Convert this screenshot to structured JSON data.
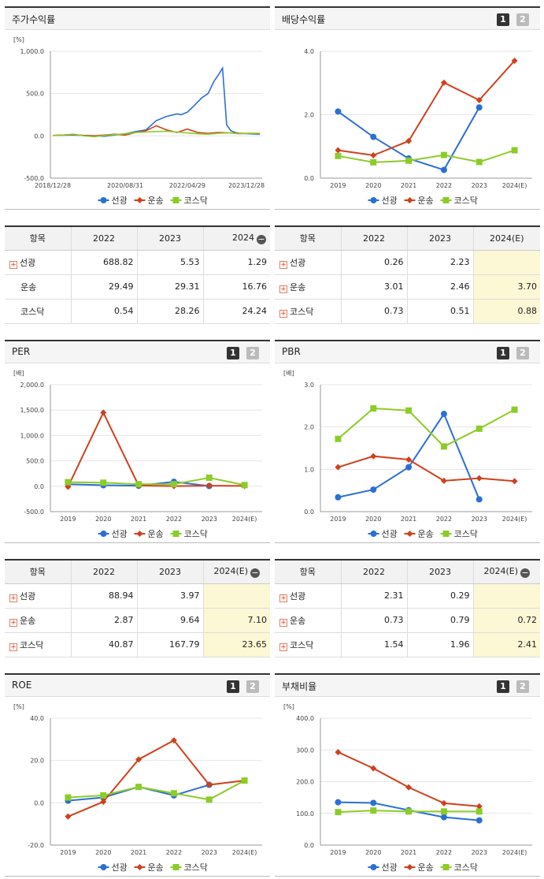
{
  "legend_names": [
    "선광",
    "운송",
    "코스닥"
  ],
  "colors": {
    "s1": "#2a6fd6",
    "s2": "#d0401c",
    "s3": "#8ccc28"
  },
  "toggle": {
    "one": "1",
    "two": "2"
  },
  "panels": {
    "stock": {
      "title": "주가수익률"
    },
    "div": {
      "title": "배당수익률"
    },
    "per": {
      "title": "PER"
    },
    "pbr": {
      "title": "PBR"
    },
    "roe": {
      "title": "ROE"
    },
    "debt": {
      "title": "부채비율"
    }
  },
  "tables": {
    "stock": {
      "headers": [
        "항목",
        "2022",
        "2023",
        "2024"
      ],
      "rows": [
        {
          "label": "선광",
          "values": [
            "688.82",
            "5.53",
            "1.29"
          ]
        },
        {
          "label": "운송",
          "values": [
            "29.49",
            "29.31",
            "16.76"
          ]
        },
        {
          "label": "코스닥",
          "values": [
            "0.54",
            "28.26",
            "24.24"
          ]
        }
      ]
    },
    "div": {
      "headers": [
        "항목",
        "2022",
        "2023",
        "2024(E)"
      ],
      "rows": [
        {
          "label": "선광",
          "values": [
            "0.26",
            "2.23",
            ""
          ]
        },
        {
          "label": "운송",
          "values": [
            "3.01",
            "2.46",
            "3.70"
          ]
        },
        {
          "label": "코스닥",
          "values": [
            "0.73",
            "0.51",
            "0.88"
          ]
        }
      ]
    },
    "per": {
      "headers": [
        "항목",
        "2022",
        "2023",
        "2024(E)"
      ],
      "rows": [
        {
          "label": "선광",
          "values": [
            "88.94",
            "3.97",
            ""
          ]
        },
        {
          "label": "운송",
          "values": [
            "2.87",
            "9.64",
            "7.10"
          ]
        },
        {
          "label": "코스닥",
          "values": [
            "40.87",
            "167.79",
            "23.65"
          ]
        }
      ]
    },
    "pbr": {
      "headers": [
        "항목",
        "2022",
        "2023",
        "2024(E)"
      ],
      "rows": [
        {
          "label": "선광",
          "values": [
            "2.31",
            "0.29",
            ""
          ]
        },
        {
          "label": "운송",
          "values": [
            "0.73",
            "0.79",
            "0.72"
          ]
        },
        {
          "label": "코스닥",
          "values": [
            "1.54",
            "1.96",
            "2.41"
          ]
        }
      ]
    }
  },
  "chart_data": [
    {
      "id": "stock",
      "type": "line",
      "title": "주가수익률",
      "unit": "[%]",
      "ylim": [
        -500,
        1000
      ],
      "yticks": [
        "-500.0",
        "0.0",
        "500.0",
        "1,000.0"
      ],
      "xtick_labels": [
        "2018/12/28",
        "2020/08/31",
        "2022/04/29",
        "2023/12/28"
      ],
      "xtick_pos": [
        0,
        0.35,
        0.65,
        1.0
      ],
      "series": [
        {
          "name": "선광",
          "x": [
            0,
            0.05,
            0.1,
            0.15,
            0.2,
            0.25,
            0.3,
            0.35,
            0.4,
            0.45,
            0.5,
            0.55,
            0.6,
            0.62,
            0.65,
            0.68,
            0.72,
            0.75,
            0.78,
            0.8,
            0.82,
            0.84,
            0.86,
            0.88,
            0.9,
            0.95,
            1.0
          ],
          "values": [
            5,
            8,
            10,
            5,
            2,
            -5,
            10,
            25,
            50,
            70,
            180,
            230,
            260,
            250,
            280,
            350,
            450,
            500,
            650,
            720,
            800,
            130,
            60,
            40,
            30,
            25,
            20
          ]
        },
        {
          "name": "운송",
          "x": [
            0,
            0.05,
            0.1,
            0.15,
            0.2,
            0.25,
            0.3,
            0.35,
            0.4,
            0.45,
            0.5,
            0.55,
            0.6,
            0.65,
            0.7,
            0.75,
            0.8,
            0.85,
            0.9,
            0.95,
            1.0
          ],
          "values": [
            5,
            10,
            15,
            5,
            0,
            10,
            20,
            10,
            40,
            60,
            120,
            70,
            40,
            80,
            40,
            30,
            40,
            35,
            30,
            30,
            30
          ]
        },
        {
          "name": "코스닥",
          "x": [
            0,
            0.05,
            0.1,
            0.15,
            0.2,
            0.25,
            0.3,
            0.35,
            0.4,
            0.45,
            0.5,
            0.55,
            0.6,
            0.65,
            0.7,
            0.75,
            0.8,
            0.85,
            0.9,
            0.95,
            1.0
          ],
          "values": [
            5,
            10,
            20,
            0,
            -10,
            5,
            15,
            25,
            40,
            45,
            50,
            55,
            45,
            35,
            25,
            20,
            30,
            35,
            25,
            30,
            30
          ]
        }
      ]
    },
    {
      "id": "div",
      "type": "line",
      "title": "배당수익률",
      "categories": [
        "2019",
        "2020",
        "2021",
        "2022",
        "2023",
        "2024(E)"
      ],
      "ylim": [
        0,
        4
      ],
      "yticks": [
        "0.0",
        "2.0",
        "4.0"
      ],
      "series": [
        {
          "name": "선광",
          "values": [
            2.1,
            1.3,
            0.62,
            0.26,
            2.23,
            null
          ]
        },
        {
          "name": "운송",
          "values": [
            0.88,
            0.72,
            1.17,
            3.01,
            2.46,
            3.7
          ]
        },
        {
          "name": "코스닥",
          "values": [
            0.7,
            0.5,
            0.55,
            0.73,
            0.51,
            0.88
          ]
        }
      ]
    },
    {
      "id": "per",
      "type": "line",
      "title": "PER",
      "unit": "[배]",
      "categories": [
        "2019",
        "2020",
        "2021",
        "2022",
        "2023",
        "2024(E)"
      ],
      "ylim": [
        -500,
        2000
      ],
      "yticks": [
        "-500.0",
        "0.0",
        "500.0",
        "1,000.0",
        "1,500.0",
        "2,000.0"
      ],
      "series": [
        {
          "name": "선광",
          "values": [
            40,
            20,
            10,
            88.94,
            3.97,
            null
          ]
        },
        {
          "name": "운송",
          "values": [
            -10,
            1450,
            15,
            2.87,
            9.64,
            7.1
          ]
        },
        {
          "name": "코스닥",
          "values": [
            80,
            70,
            40,
            40.87,
            167.79,
            23.65
          ]
        }
      ]
    },
    {
      "id": "pbr",
      "type": "line",
      "title": "PBR",
      "unit": "[배]",
      "categories": [
        "2019",
        "2020",
        "2021",
        "2022",
        "2023",
        "2024(E)"
      ],
      "ylim": [
        0,
        3
      ],
      "yticks": [
        "0.0",
        "1.0",
        "2.0",
        "3.0"
      ],
      "series": [
        {
          "name": "선광",
          "values": [
            0.34,
            0.52,
            1.05,
            2.31,
            0.29,
            null
          ]
        },
        {
          "name": "운송",
          "values": [
            1.05,
            1.31,
            1.23,
            0.73,
            0.79,
            0.72
          ]
        },
        {
          "name": "코스닥",
          "values": [
            1.72,
            2.44,
            2.39,
            1.54,
            1.96,
            2.41
          ]
        }
      ]
    },
    {
      "id": "roe",
      "type": "line",
      "title": "ROE",
      "unit": "[%]",
      "categories": [
        "2019",
        "2020",
        "2021",
        "2022",
        "2023",
        "2024(E)"
      ],
      "ylim": [
        -20,
        40
      ],
      "yticks": [
        "-20.0",
        "0.0",
        "20.0",
        "40.0"
      ],
      "series": [
        {
          "name": "선광",
          "values": [
            1,
            2.5,
            7.5,
            3.5,
            8.5,
            null
          ]
        },
        {
          "name": "운송",
          "values": [
            -6.5,
            0.5,
            20.5,
            29.5,
            8.5,
            10.5
          ]
        },
        {
          "name": "코스닥",
          "values": [
            2.5,
            3.5,
            7.5,
            4.5,
            1.5,
            10.5
          ]
        }
      ]
    },
    {
      "id": "debt",
      "type": "line",
      "title": "부채비율",
      "unit": "[%]",
      "categories": [
        "2019",
        "2020",
        "2021",
        "2022",
        "2023",
        "2024(E)"
      ],
      "ylim": [
        0,
        400
      ],
      "yticks": [
        "0.0",
        "100.0",
        "200.0",
        "300.0",
        "400.0"
      ],
      "series": [
        {
          "name": "선광",
          "values": [
            135,
            133,
            110,
            88,
            78,
            null
          ]
        },
        {
          "name": "운송",
          "values": [
            293,
            242,
            182,
            132,
            122,
            null
          ]
        },
        {
          "name": "코스닥",
          "values": [
            104,
            109,
            106,
            106,
            106,
            null
          ]
        }
      ]
    }
  ]
}
